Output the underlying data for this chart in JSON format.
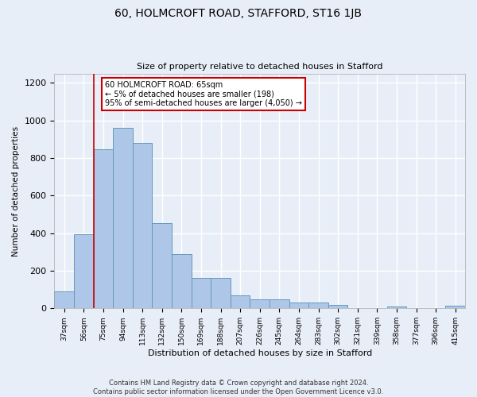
{
  "title": "60, HOLMCROFT ROAD, STAFFORD, ST16 1JB",
  "subtitle": "Size of property relative to detached houses in Stafford",
  "xlabel": "Distribution of detached houses by size in Stafford",
  "ylabel": "Number of detached properties",
  "categories": [
    "37sqm",
    "56sqm",
    "75sqm",
    "94sqm",
    "113sqm",
    "132sqm",
    "150sqm",
    "169sqm",
    "188sqm",
    "207sqm",
    "226sqm",
    "245sqm",
    "264sqm",
    "283sqm",
    "302sqm",
    "321sqm",
    "339sqm",
    "358sqm",
    "377sqm",
    "396sqm",
    "415sqm"
  ],
  "values": [
    90,
    395,
    845,
    960,
    880,
    455,
    290,
    160,
    160,
    70,
    50,
    50,
    30,
    30,
    20,
    0,
    0,
    10,
    0,
    0,
    15
  ],
  "bar_color": "#aec6e8",
  "bar_edge_color": "#6699bb",
  "vline_x": 1.5,
  "vline_color": "#cc0000",
  "annotation_text": "60 HOLMCROFT ROAD: 65sqm\n← 5% of detached houses are smaller (198)\n95% of semi-detached houses are larger (4,050) →",
  "annotation_box_color": "#ffffff",
  "annotation_box_edge_color": "#cc0000",
  "ylim": [
    0,
    1250
  ],
  "fig_background_color": "#e8eef8",
  "plot_background_color": "#e8eef8",
  "grid_color": "#ffffff",
  "footer": "Contains HM Land Registry data © Crown copyright and database right 2024.\nContains public sector information licensed under the Open Government Licence v3.0."
}
